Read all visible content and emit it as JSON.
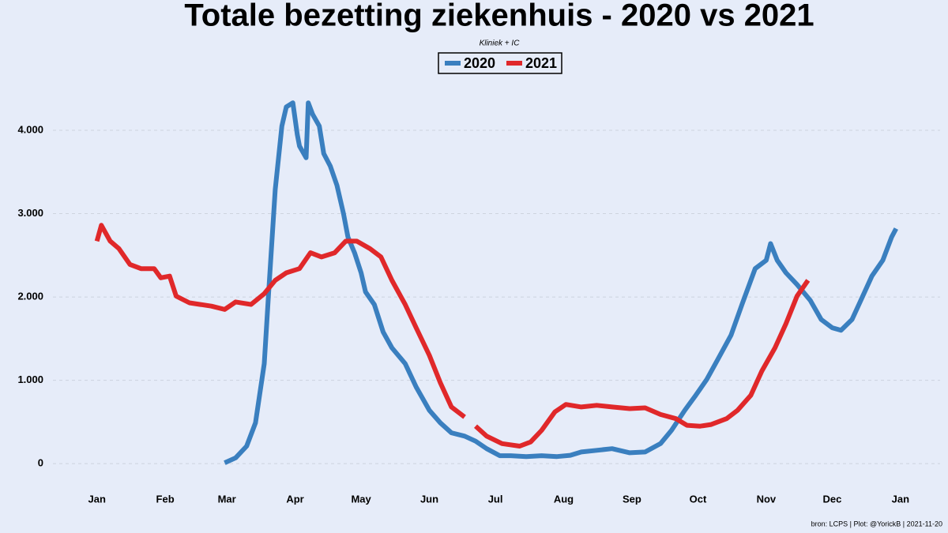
{
  "chart_data": {
    "type": "line",
    "title": "Totale bezetting ziekenhuis - 2020 vs 2021",
    "subtitle": "Kliniek + IC",
    "caption": "bron: LCPS  | Plot: @YorickB |  2021-11-20",
    "xlim": [
      -20,
      383
    ],
    "xticks": [
      {
        "value": 0,
        "label": "Jan"
      },
      {
        "value": 31,
        "label": "Feb"
      },
      {
        "value": 59,
        "label": "Mar"
      },
      {
        "value": 90,
        "label": "Apr"
      },
      {
        "value": 120,
        "label": "May"
      },
      {
        "value": 151,
        "label": "Jun"
      },
      {
        "value": 181,
        "label": "Jul"
      },
      {
        "value": 212,
        "label": "Aug"
      },
      {
        "value": 243,
        "label": "Sep"
      },
      {
        "value": 273,
        "label": "Oct"
      },
      {
        "value": 304,
        "label": "Nov"
      },
      {
        "value": 334,
        "label": "Dec"
      },
      {
        "value": 365,
        "label": "Jan"
      }
    ],
    "ylim": [
      -150,
      4450
    ],
    "yticks": [
      0,
      {
        "value": 1000,
        "label": "1.000"
      },
      {
        "value": 2000,
        "label": "2.000"
      },
      {
        "value": 3000,
        "label": "3.000"
      },
      {
        "value": 4000,
        "label": "4.000"
      }
    ],
    "grid": true,
    "legend": "top",
    "series": [
      {
        "name": "2020",
        "color": "#3a7fbf",
        "x": [
          58,
          63,
          68,
          72,
          76,
          78,
          81,
          84,
          86,
          89,
          91,
          92,
          95,
          96,
          98,
          101,
          103,
          106,
          109,
          112,
          114,
          117,
          120,
          122,
          126,
          130,
          134,
          140,
          145,
          151,
          156,
          161,
          167,
          172,
          177,
          183,
          188,
          195,
          202,
          209,
          215,
          220,
          227,
          234,
          242,
          249,
          256,
          261,
          267,
          272,
          277,
          282,
          288,
          293,
          299,
          304,
          306,
          309,
          313,
          318,
          324,
          329,
          334,
          338,
          343,
          347,
          352,
          357,
          361,
          363
        ],
        "values": [
          10,
          70,
          210,
          490,
          1200,
          2060,
          3290,
          4050,
          4280,
          4330,
          3950,
          3810,
          3670,
          4330,
          4190,
          4050,
          3720,
          3570,
          3340,
          3000,
          2720,
          2530,
          2290,
          2060,
          1910,
          1580,
          1390,
          1200,
          920,
          640,
          490,
          370,
          330,
          270,
          180,
          95,
          95,
          85,
          95,
          85,
          100,
          140,
          160,
          180,
          130,
          140,
          240,
          400,
          640,
          820,
          1010,
          1250,
          1540,
          1910,
          2340,
          2440,
          2640,
          2440,
          2290,
          2150,
          1960,
          1730,
          1630,
          1600,
          1730,
          1960,
          2250,
          2440,
          2720,
          2820
        ]
      },
      {
        "name": "2021",
        "color": "#e0282a",
        "x": [
          0,
          2,
          6,
          10,
          15,
          20,
          26,
          29,
          33,
          36,
          42,
          47,
          52,
          58,
          63,
          70,
          76,
          81,
          86,
          92,
          97,
          102,
          108,
          113,
          118,
          124,
          129,
          134,
          140,
          145,
          151,
          156,
          161,
          167,
          170,
          172,
          177,
          184,
          192,
          197,
          202,
          208,
          213,
          220,
          227,
          234,
          242,
          249,
          256,
          263,
          268,
          274,
          279,
          286,
          291,
          297,
          302,
          308,
          313,
          318,
          323
        ],
        "values": [
          2670,
          2860,
          2670,
          2580,
          2390,
          2340,
          2340,
          2230,
          2250,
          2010,
          1930,
          1910,
          1890,
          1850,
          1940,
          1910,
          2040,
          2200,
          2290,
          2340,
          2530,
          2480,
          2530,
          2670,
          2670,
          2580,
          2480,
          2200,
          1910,
          1630,
          1300,
          970,
          680,
          560,
          null,
          450,
          330,
          240,
          210,
          260,
          400,
          620,
          710,
          680,
          700,
          680,
          660,
          670,
          590,
          540,
          460,
          450,
          470,
          540,
          640,
          820,
          1110,
          1390,
          1680,
          2010,
          2200
        ]
      }
    ]
  }
}
